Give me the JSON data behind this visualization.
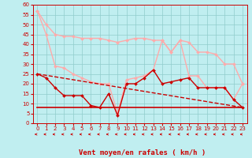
{
  "xlabel": "Vent moyen/en rafales ( km/h )",
  "xlim": [
    -0.5,
    23.5
  ],
  "ylim": [
    0,
    60
  ],
  "yticks": [
    0,
    5,
    10,
    15,
    20,
    25,
    30,
    35,
    40,
    45,
    50,
    55,
    60
  ],
  "xticks": [
    0,
    1,
    2,
    3,
    4,
    5,
    6,
    7,
    8,
    9,
    10,
    11,
    12,
    13,
    14,
    15,
    16,
    17,
    18,
    19,
    20,
    21,
    22,
    23
  ],
  "background_color": "#c0eef0",
  "grid_color": "#90cccc",
  "series": [
    {
      "label": "top_pink",
      "x": [
        0,
        1,
        2,
        3,
        4,
        5,
        6,
        7,
        8,
        9,
        10,
        11,
        12,
        13,
        14,
        15,
        16,
        17,
        18,
        19,
        20,
        21,
        22,
        23
      ],
      "y": [
        57,
        50,
        45,
        44,
        44,
        43,
        43,
        43,
        42,
        41,
        42,
        43,
        43,
        42,
        42,
        36,
        42,
        41,
        36,
        36,
        35,
        30,
        30,
        20
      ],
      "color": "#ffaaaa",
      "lw": 1.0,
      "marker": "D",
      "ms": 2.0,
      "ls": "-"
    },
    {
      "label": "mid_pink",
      "x": [
        0,
        1,
        2,
        3,
        4,
        5,
        6,
        7,
        8,
        9,
        10,
        11,
        12,
        13,
        14,
        15,
        16,
        17,
        18,
        19,
        20,
        21,
        22,
        23
      ],
      "y": [
        57,
        45,
        29,
        28,
        25,
        23,
        21,
        20,
        20,
        5,
        22,
        23,
        24,
        27,
        42,
        36,
        42,
        24,
        24,
        18,
        18,
        18,
        12,
        20
      ],
      "color": "#ffaaaa",
      "lw": 1.0,
      "marker": "D",
      "ms": 2.0,
      "ls": "-"
    },
    {
      "label": "dark_red_markers",
      "x": [
        0,
        1,
        2,
        3,
        4,
        5,
        6,
        7,
        8,
        9,
        10,
        11,
        12,
        13,
        14,
        15,
        16,
        17,
        18,
        19,
        20,
        21,
        22,
        23
      ],
      "y": [
        25,
        23,
        18,
        14,
        14,
        14,
        9,
        8,
        15,
        4,
        20,
        20,
        23,
        27,
        20,
        21,
        22,
        23,
        18,
        18,
        18,
        18,
        12,
        8
      ],
      "color": "#cc0000",
      "lw": 1.0,
      "marker": "D",
      "ms": 2.0,
      "ls": "-"
    },
    {
      "label": "horiz_line",
      "x": [
        0,
        23
      ],
      "y": [
        8,
        8
      ],
      "color": "#cc0000",
      "lw": 1.2,
      "marker": null,
      "ms": 0,
      "ls": "-"
    },
    {
      "label": "diag_dashed",
      "x": [
        0,
        23
      ],
      "y": [
        25,
        8
      ],
      "color": "#cc0000",
      "lw": 1.0,
      "marker": null,
      "ms": 0,
      "ls": "--"
    }
  ],
  "xlabel_color": "#cc0000",
  "xlabel_fontsize": 6.5,
  "tick_color": "#cc0000",
  "tick_fontsize": 5.0,
  "arrow_color": "#cc0000"
}
